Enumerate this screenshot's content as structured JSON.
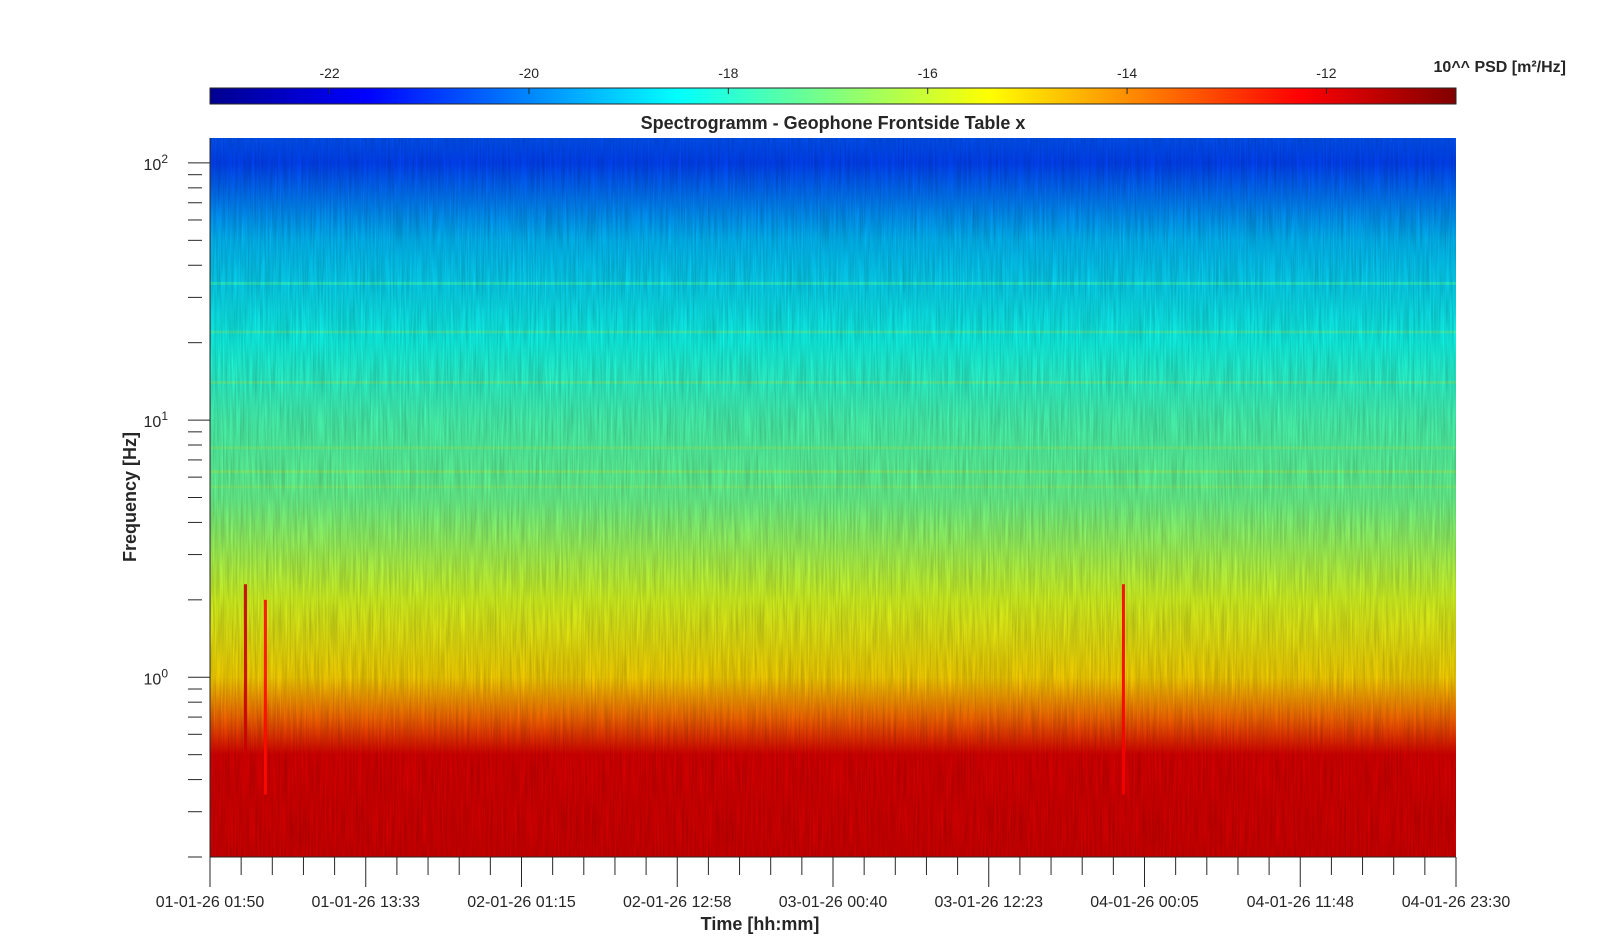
{
  "chart_data": {
    "type": "heatmap",
    "title": "Spectrogramm - Geophone Frontside Table x",
    "xlabel": "Time [hh:mm]",
    "ylabel": "Frequency [Hz]",
    "x_ticks": [
      "01-01-26 01:50",
      "01-01-26 13:33",
      "02-01-26 01:15",
      "02-01-26 12:58",
      "03-01-26 00:40",
      "03-01-26 12:23",
      "04-01-26 00:05",
      "04-01-26 11:48",
      "04-01-26 23:30"
    ],
    "x_range": [
      "01-01-26 01:50",
      "04-01-26 23:30"
    ],
    "y_scale": "log",
    "y_range": [
      0.2,
      125
    ],
    "y_ticks": [
      {
        "base": "10",
        "exp": "0",
        "value": 1
      },
      {
        "base": "10",
        "exp": "1",
        "value": 10
      },
      {
        "base": "10",
        "exp": "2",
        "value": 100
      }
    ],
    "colorbar": {
      "label": "10^^ PSD [m²/Hz]",
      "range": [
        -23.2,
        -10.7
      ],
      "ticks": [
        "-22",
        "-20",
        "-18",
        "-16",
        "-14",
        "-12"
      ],
      "colormap": "jet",
      "placement": "top"
    },
    "psd_profile_log10": [
      {
        "freq": 0.2,
        "psd": -11.8
      },
      {
        "freq": 0.5,
        "psd": -11.9
      },
      {
        "freq": 0.7,
        "psd": -13.6
      },
      {
        "freq": 1.0,
        "psd": -14.9
      },
      {
        "freq": 2.0,
        "psd": -15.8
      },
      {
        "freq": 5.0,
        "psd": -17.2
      },
      {
        "freq": 10.0,
        "psd": -17.6
      },
      {
        "freq": 20.0,
        "psd": -18.3
      },
      {
        "freq": 50.0,
        "psd": -19.3
      },
      {
        "freq": 100.0,
        "psd": -20.8
      },
      {
        "freq": 125.0,
        "psd": -20.6
      }
    ],
    "line_features": [
      {
        "freq": 5.5,
        "psd": -16.9
      },
      {
        "freq": 6.3,
        "psd": -16.8
      },
      {
        "freq": 7.8,
        "psd": -17.0
      },
      {
        "freq": 14.0,
        "psd": -17.3
      },
      {
        "freq": 22.0,
        "psd": -17.6
      },
      {
        "freq": 34.0,
        "psd": -17.9
      }
    ],
    "events": [
      {
        "time": "01-01-26 04:30",
        "fmax": 2.3,
        "psd": -11.6
      },
      {
        "time": "01-01-26 06:00",
        "fmax": 2.0,
        "psd": -12.4
      },
      {
        "time": "03-01-26 22:30",
        "fmax": 2.3,
        "psd": -12.2
      }
    ],
    "grid": false
  }
}
